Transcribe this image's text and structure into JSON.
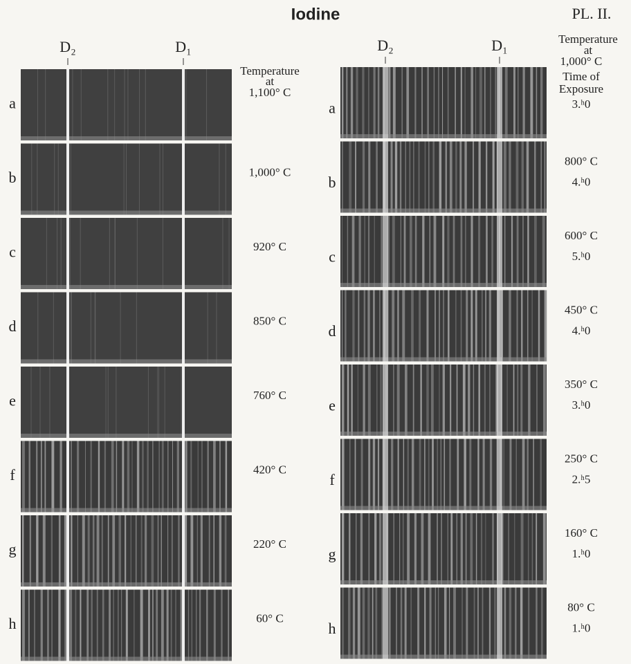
{
  "header": {
    "title": "Iodine",
    "plate": "PL. II."
  },
  "left": {
    "markers": [
      "D₂",
      "D₁"
    ],
    "heading": [
      "Temperature",
      "at"
    ],
    "rows": [
      {
        "label": "a",
        "temperature": "1,100° C"
      },
      {
        "label": "b",
        "temperature": "1,000° C"
      },
      {
        "label": "c",
        "temperature": "920° C"
      },
      {
        "label": "d",
        "temperature": "850° C"
      },
      {
        "label": "e",
        "temperature": "760° C"
      },
      {
        "label": "f",
        "temperature": "420° C"
      },
      {
        "label": "g",
        "temperature": "220° C"
      },
      {
        "label": "h",
        "temperature": "60° C"
      }
    ]
  },
  "right": {
    "markers": [
      "D₂",
      "D₁"
    ],
    "heading": [
      "Temperature",
      "at"
    ],
    "exposure_heading": [
      "Time of",
      "Exposure"
    ],
    "rows": [
      {
        "label": "a",
        "temperature": "1,000° C",
        "exposure": "3.ʰ0"
      },
      {
        "label": "b",
        "temperature": "800° C",
        "exposure": "4.ʰ0"
      },
      {
        "label": "c",
        "temperature": "600° C",
        "exposure": "5.ʰ0"
      },
      {
        "label": "d",
        "temperature": "450° C",
        "exposure": "4.ʰ0"
      },
      {
        "label": "e",
        "temperature": "350° C",
        "exposure": "3.ʰ0"
      },
      {
        "label": "f",
        "temperature": "250° C",
        "exposure": "2.ʰ5"
      },
      {
        "label": "g",
        "temperature": "160° C",
        "exposure": "1.ʰ0"
      },
      {
        "label": "h",
        "temperature": "80° C",
        "exposure": "1.ʰ0"
      }
    ]
  }
}
